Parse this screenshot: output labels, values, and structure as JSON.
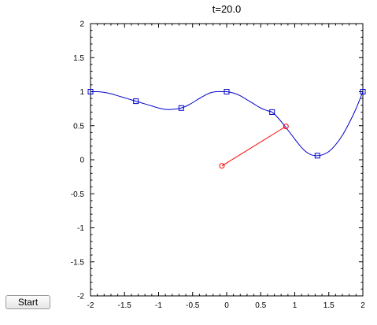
{
  "controls": {
    "start_label": "Start"
  },
  "chart_data": {
    "type": "line",
    "title": "t=20.0",
    "xlabel": "",
    "ylabel": "",
    "xlim": [
      -2,
      2
    ],
    "ylim": [
      -2,
      2
    ],
    "x_ticks": [
      "-2",
      "-1.5",
      "-1",
      "-0.5",
      "0",
      "0.5",
      "1",
      "1.5",
      "2"
    ],
    "y_ticks": [
      "2",
      "1.5",
      "1",
      "0.5",
      "0",
      "-0.5",
      "-1",
      "-1.5",
      "-2"
    ],
    "grid": false,
    "series": [
      {
        "role": "spline-curve",
        "color": "#0000cc",
        "x": [
          -2,
          -1.9,
          -1.8,
          -1.7,
          -1.6,
          -1.5,
          -1.4,
          -1.333,
          -1.2,
          -1.1,
          -1.0,
          -0.9,
          -0.8,
          -0.667,
          -0.55,
          -0.45,
          -0.35,
          -0.25,
          -0.15,
          -0.05,
          0,
          0.1,
          0.2,
          0.3,
          0.4,
          0.5,
          0.6,
          0.667,
          0.75,
          0.85,
          0.95,
          1.05,
          1.15,
          1.25,
          1.333,
          1.4,
          1.5,
          1.6,
          1.7,
          1.8,
          1.9,
          2.0
        ],
        "y": [
          1.0,
          1.0,
          0.99,
          0.97,
          0.94,
          0.91,
          0.88,
          0.86,
          0.82,
          0.79,
          0.76,
          0.74,
          0.74,
          0.76,
          0.81,
          0.87,
          0.93,
          0.98,
          1.0,
          1.0,
          1.0,
          0.98,
          0.94,
          0.88,
          0.82,
          0.76,
          0.72,
          0.7,
          0.62,
          0.5,
          0.37,
          0.24,
          0.13,
          0.07,
          0.06,
          0.07,
          0.12,
          0.22,
          0.36,
          0.54,
          0.75,
          1.0
        ]
      },
      {
        "role": "control-points",
        "color": "#0000cc",
        "marker": "square",
        "x": [
          -2,
          -1.333,
          -0.667,
          0,
          0.667,
          1.333,
          2
        ],
        "y": [
          1.0,
          0.86,
          0.76,
          1.0,
          0.7,
          0.06,
          1.0
        ]
      },
      {
        "role": "red-segment",
        "color": "#ff0000",
        "marker": "circle",
        "x": [
          -0.07,
          0.87
        ],
        "y": [
          -0.09,
          0.49
        ]
      }
    ]
  }
}
